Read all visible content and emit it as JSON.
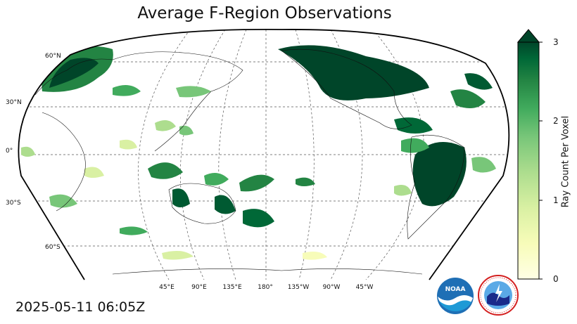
{
  "title": "Average F-Region Observations",
  "timestamp": "2025-05-11 06:05Z",
  "lat_labels": [
    "60°N",
    "30°N",
    "0°",
    "30°S",
    "60°S"
  ],
  "lon_labels": [
    "45°E",
    "90°E",
    "135°E",
    "180°",
    "135°W",
    "90°W",
    "45°W"
  ],
  "colorbar": {
    "label": "Ray Count Per Voxel",
    "ticks": [
      "0",
      "1",
      "2",
      "3"
    ],
    "range": [
      0,
      3
    ],
    "extend": "max",
    "colormap": "YlGn",
    "color_low": "#ffffe5",
    "color_high": "#004529"
  },
  "logos": {
    "noaa": {
      "text": "NOAA",
      "icon": "noaa-logo-icon"
    },
    "nws": {
      "text": "NATIONAL WEATHER SERVICE",
      "icon": "nws-logo-icon"
    }
  }
}
